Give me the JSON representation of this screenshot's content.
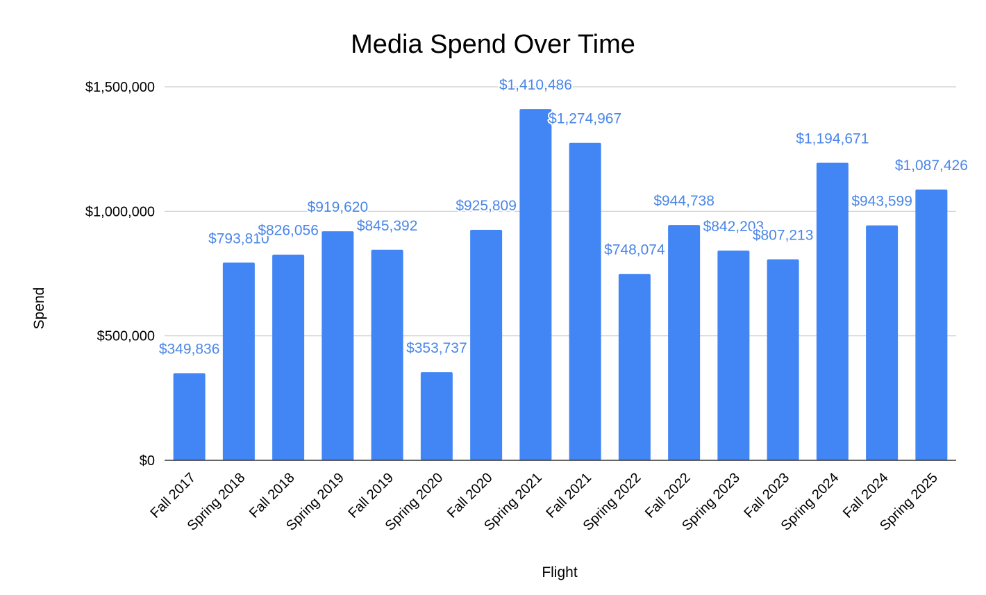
{
  "colors": {
    "bar": "#4285f4",
    "label": "#4a86e8",
    "grid": "#cccccc",
    "axis": "#333333"
  },
  "chart_data": {
    "type": "bar",
    "title": "Media Spend Over Time",
    "xlabel": "Flight",
    "ylabel": "Spend",
    "ylim": [
      0,
      1500000
    ],
    "yticks": [
      0,
      500000,
      1000000,
      1500000
    ],
    "ytick_labels": [
      "$0",
      "$500,000",
      "$1,000,000",
      "$1,500,000"
    ],
    "grid": true,
    "legend": "none",
    "categories": [
      "Fall 2017",
      "Spring 2018",
      "Fall 2018",
      "Spring 2019",
      "Fall 2019",
      "Spring 2020",
      "Fall 2020",
      "Spring 2021",
      "Fall 2021",
      "Spring 2022",
      "Fall 2022",
      "Spring 2023",
      "Fall 2023",
      "Spring 2024",
      "Fall 2024",
      "Spring 2025"
    ],
    "values": [
      349836,
      793810,
      826056,
      919620,
      845392,
      353737,
      925809,
      1410486,
      1274967,
      748074,
      944738,
      842203,
      807213,
      1194671,
      943599,
      1087426
    ],
    "data_labels": [
      "$349,836",
      "$793,810",
      "$826,056",
      "$919,620",
      "$845,392",
      "$353,737",
      "$925,809",
      "$1,410,486",
      "$1,274,967",
      "$748,074",
      "$944,738",
      "$842,203",
      "$807,213",
      "$1,194,671",
      "$943,599",
      "$1,087,426"
    ]
  }
}
